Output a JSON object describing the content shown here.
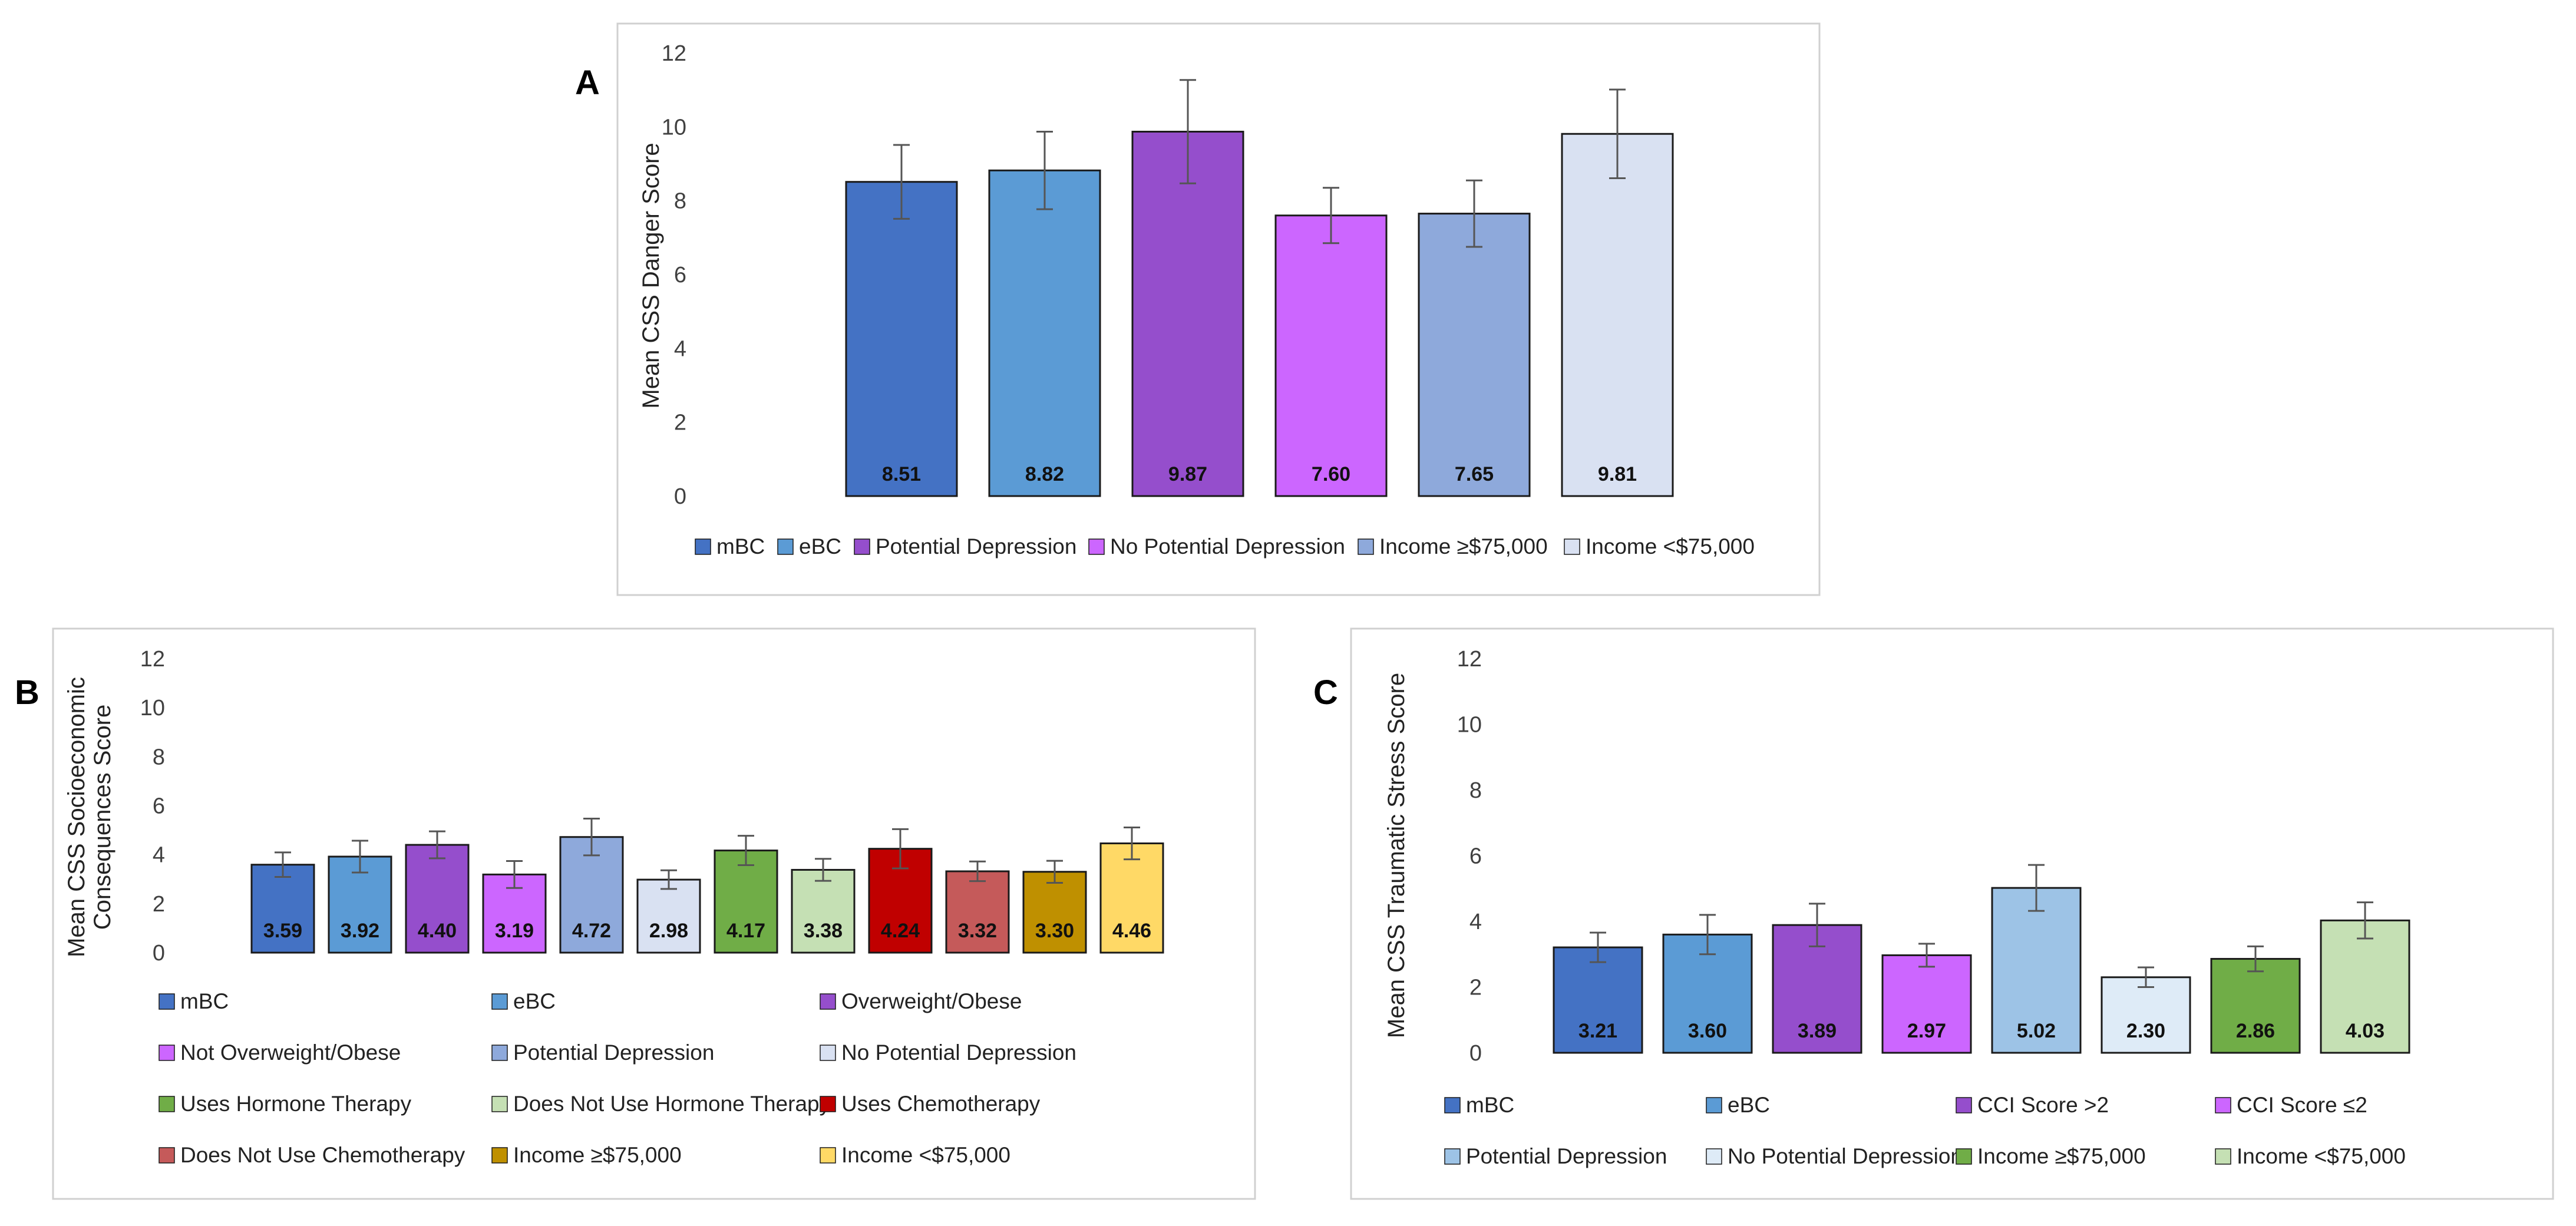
{
  "chart_data": [
    {
      "panel": "A",
      "type": "bar",
      "title": "",
      "ylabel": [
        "Mean CSS Danger Score"
      ],
      "ylim": [
        0,
        12
      ],
      "yticks": [
        "0",
        "2",
        "4",
        "6",
        "8",
        "10",
        "12"
      ],
      "series": [
        {
          "name": "mBC",
          "value": 8.51,
          "label": "8.51",
          "err": 1.0,
          "color": "#4472C4"
        },
        {
          "name": "eBC",
          "value": 8.82,
          "label": "8.82",
          "err": 1.05,
          "color": "#5B9BD5"
        },
        {
          "name": "Potential Depression",
          "value": 9.87,
          "label": "9.87",
          "err": 1.4,
          "color": "#954ECC"
        },
        {
          "name": "No Potential Depression",
          "value": 7.6,
          "label": "7.60",
          "err": 0.75,
          "color": "#CC66FF"
        },
        {
          "name": "Income ≥$75,000",
          "value": 7.65,
          "label": "7.65",
          "err": 0.9,
          "color": "#8EA9DB"
        },
        {
          "name": "Income <$75,000",
          "value": 9.81,
          "label": "9.81",
          "err": 1.2,
          "color": "#D9E1F2"
        }
      ]
    },
    {
      "panel": "B",
      "type": "bar",
      "title": "",
      "ylabel": [
        "Mean CSS Socioeconomic",
        "Consequences Score"
      ],
      "ylim": [
        0,
        12
      ],
      "yticks": [
        "0",
        "2",
        "4",
        "6",
        "8",
        "10",
        "12"
      ],
      "series": [
        {
          "name": "mBC",
          "value": 3.59,
          "label": "3.59",
          "err": 0.5,
          "color": "#4472C4"
        },
        {
          "name": "eBC",
          "value": 3.92,
          "label": "3.92",
          "err": 0.65,
          "color": "#5B9BD5"
        },
        {
          "name": "Overweight/Obese",
          "value": 4.4,
          "label": "4.40",
          "err": 0.55,
          "color": "#954ECC"
        },
        {
          "name": "Not Overweight/Obese",
          "value": 3.19,
          "label": "3.19",
          "err": 0.55,
          "color": "#CC66FF"
        },
        {
          "name": "Potential Depression",
          "value": 4.72,
          "label": "4.72",
          "err": 0.75,
          "color": "#8EA9DB"
        },
        {
          "name": "No Potential Depression",
          "value": 2.98,
          "label": "2.98",
          "err": 0.38,
          "color": "#D9E1F2"
        },
        {
          "name": "Uses Hormone Therapy",
          "value": 4.17,
          "label": "4.17",
          "err": 0.6,
          "color": "#70AD47"
        },
        {
          "name": "Does Not Use Hormone Therapy",
          "value": 3.38,
          "label": "3.38",
          "err": 0.45,
          "color": "#C5E0B4"
        },
        {
          "name": "Uses Chemotherapy",
          "value": 4.24,
          "label": "4.24",
          "err": 0.8,
          "color": "#C00000"
        },
        {
          "name": "Does Not Use Chemotherapy",
          "value": 3.32,
          "label": "3.32",
          "err": 0.4,
          "color": "#C55A5A"
        },
        {
          "name": "Income ≥$75,000",
          "value": 3.3,
          "label": "3.30",
          "err": 0.45,
          "color": "#BF9000"
        },
        {
          "name": "Income <$75,000",
          "value": 4.46,
          "label": "4.46",
          "err": 0.65,
          "color": "#FFD966"
        }
      ]
    },
    {
      "panel": "C",
      "type": "bar",
      "title": "",
      "ylabel": [
        "Mean CSS Traumatic Stress Score"
      ],
      "ylim": [
        0,
        12
      ],
      "yticks": [
        "0",
        "2",
        "4",
        "6",
        "8",
        "10",
        "12"
      ],
      "series": [
        {
          "name": "mBC",
          "value": 3.21,
          "label": "3.21",
          "err": 0.45,
          "color": "#4472C4"
        },
        {
          "name": "eBC",
          "value": 3.6,
          "label": "3.60",
          "err": 0.6,
          "color": "#5B9BD5"
        },
        {
          "name": "CCI Score >2",
          "value": 3.89,
          "label": "3.89",
          "err": 0.65,
          "color": "#954ECC"
        },
        {
          "name": "CCI Score ≤2",
          "value": 2.97,
          "label": "2.97",
          "err": 0.35,
          "color": "#CC66FF"
        },
        {
          "name": "Potential Depression",
          "value": 5.02,
          "label": "5.02",
          "err": 0.7,
          "color": "#9DC3E6"
        },
        {
          "name": "No Potential Depression",
          "value": 2.3,
          "label": "2.30",
          "err": 0.3,
          "color": "#DEEBF7"
        },
        {
          "name": "Income ≥$75,000",
          "value": 2.86,
          "label": "2.86",
          "err": 0.38,
          "color": "#70AD47"
        },
        {
          "name": "Income <$75,000",
          "value": 4.03,
          "label": "4.03",
          "err": 0.55,
          "color": "#C5E0B4"
        }
      ]
    }
  ]
}
